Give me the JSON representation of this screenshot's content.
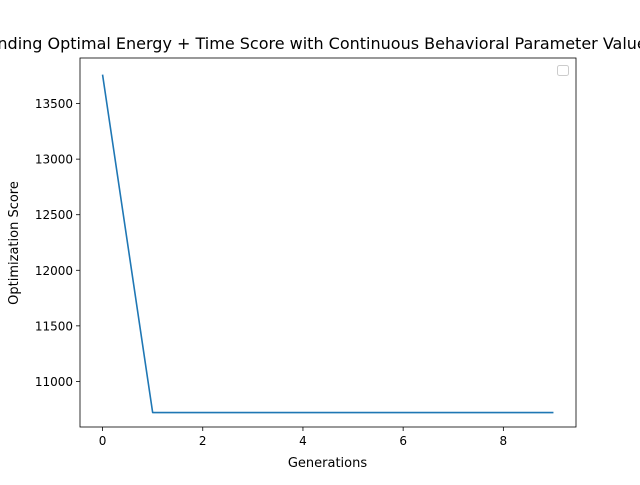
{
  "chart_data": {
    "type": "line",
    "title": "Finding Optimal Energy + Time Score with Continuous Behavioral Parameter Values",
    "xlabel": "Generations",
    "ylabel": "Optimization Score",
    "xlim": [
      -0.45,
      9.45
    ],
    "ylim": [
      10590,
      13910
    ],
    "x_ticks": [
      0,
      2,
      4,
      6,
      8
    ],
    "y_ticks": [
      11000,
      11500,
      12000,
      12500,
      13000,
      13500
    ],
    "grid": false,
    "legend": {
      "placement": "top-right",
      "entries": []
    },
    "series": [
      {
        "color": "#1f77b4",
        "x": [
          0,
          1,
          2,
          3,
          4,
          5,
          6,
          7,
          8,
          9
        ],
        "y": [
          13760,
          10720,
          10720,
          10720,
          10720,
          10720,
          10720,
          10720,
          10720,
          10720
        ]
      }
    ]
  }
}
